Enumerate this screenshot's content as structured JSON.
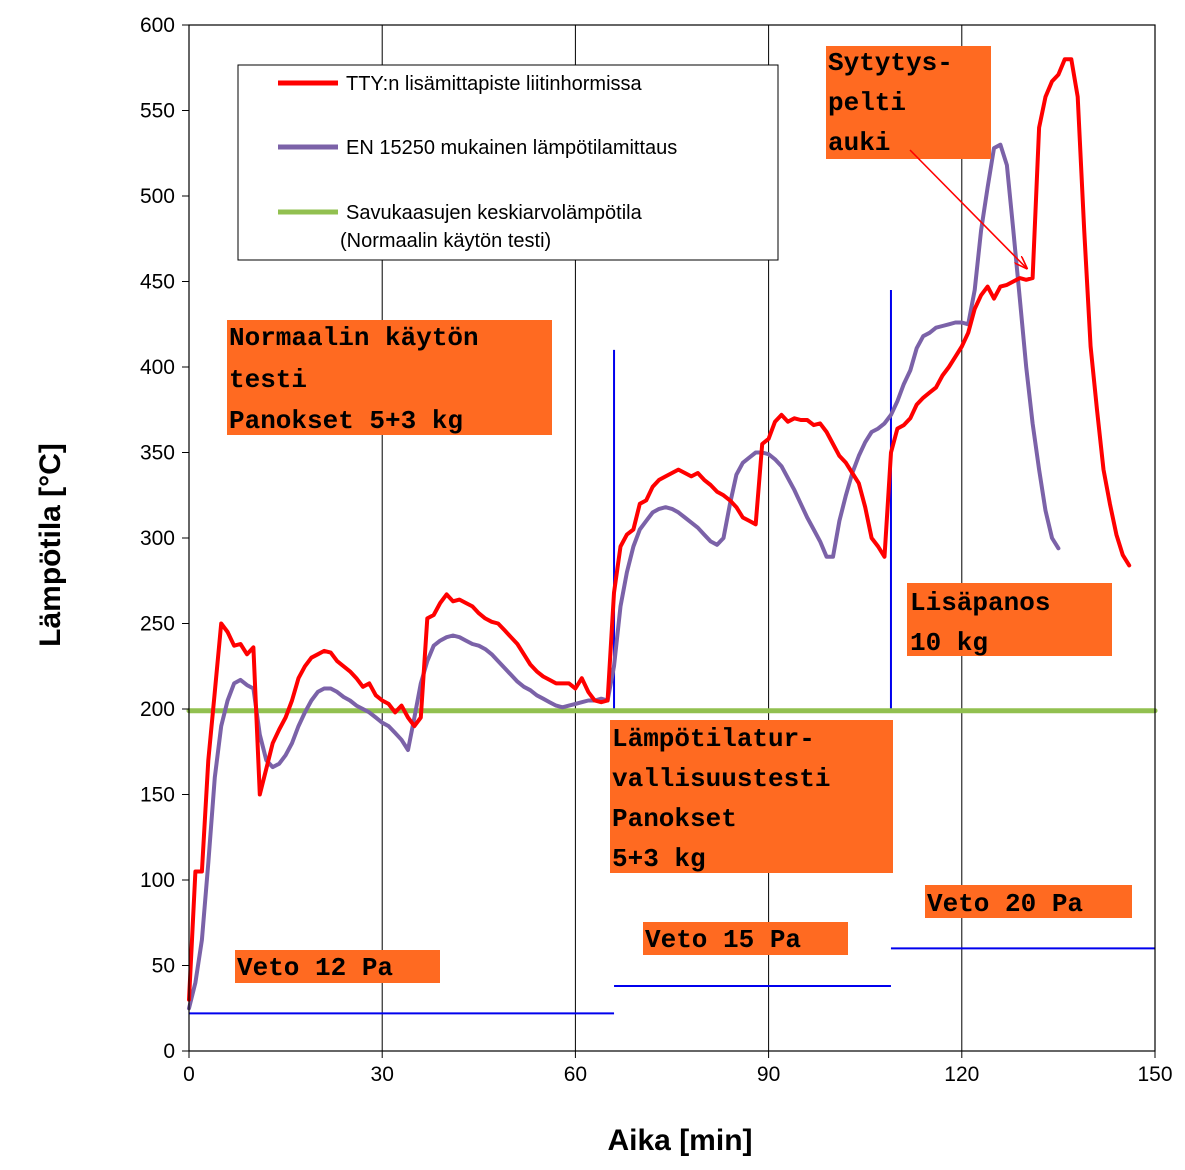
{
  "chart_data": {
    "type": "line",
    "xlabel": "Aika [min]",
    "ylabel": "Lämpötila [°C]",
    "xlim": [
      0,
      150
    ],
    "ylim": [
      0,
      600
    ],
    "xticks": [
      0,
      30,
      60,
      90,
      120,
      150
    ],
    "yticks": [
      0,
      50,
      100,
      150,
      200,
      250,
      300,
      350,
      400,
      450,
      500,
      550,
      600
    ],
    "grid": "vertical",
    "legend_position": "top-left",
    "legend": [
      {
        "label": "TTY:n lisämittapiste liitinhormissa",
        "color": "#ff0000"
      },
      {
        "label": "EN 15250 mukainen lämpötilamittaus",
        "color": "#7b62a8"
      },
      {
        "label": "Savukaasujen keskiarvolämpötila",
        "label2": "(Normaalin käytön testi)",
        "color": "#92c050"
      }
    ],
    "series": [
      {
        "name": "TTY:n lisämittapiste liitinhormissa",
        "color": "#ff0000",
        "points": [
          [
            0,
            30
          ],
          [
            1,
            105
          ],
          [
            2,
            105
          ],
          [
            3,
            170
          ],
          [
            4,
            210
          ],
          [
            5,
            250
          ],
          [
            6,
            245
          ],
          [
            7,
            237
          ],
          [
            8,
            238
          ],
          [
            9,
            232
          ],
          [
            10,
            236
          ],
          [
            11,
            150
          ],
          [
            12,
            165
          ],
          [
            13,
            180
          ],
          [
            14,
            188
          ],
          [
            15,
            195
          ],
          [
            16,
            205
          ],
          [
            17,
            218
          ],
          [
            18,
            225
          ],
          [
            19,
            230
          ],
          [
            20,
            232
          ],
          [
            21,
            234
          ],
          [
            22,
            233
          ],
          [
            23,
            228
          ],
          [
            24,
            225
          ],
          [
            25,
            222
          ],
          [
            26,
            218
          ],
          [
            27,
            213
          ],
          [
            28,
            215
          ],
          [
            29,
            208
          ],
          [
            30,
            205
          ],
          [
            31,
            203
          ],
          [
            32,
            198
          ],
          [
            33,
            202
          ],
          [
            34,
            195
          ],
          [
            35,
            190
          ],
          [
            36,
            195
          ],
          [
            37,
            253
          ],
          [
            38,
            255
          ],
          [
            39,
            262
          ],
          [
            40,
            267
          ],
          [
            41,
            263
          ],
          [
            42,
            264
          ],
          [
            43,
            262
          ],
          [
            44,
            260
          ],
          [
            45,
            256
          ],
          [
            46,
            253
          ],
          [
            47,
            251
          ],
          [
            48,
            250
          ],
          [
            49,
            246
          ],
          [
            50,
            242
          ],
          [
            51,
            238
          ],
          [
            52,
            232
          ],
          [
            53,
            226
          ],
          [
            54,
            222
          ],
          [
            55,
            219
          ],
          [
            56,
            217
          ],
          [
            57,
            215
          ],
          [
            58,
            215
          ],
          [
            59,
            215
          ],
          [
            60,
            212
          ],
          [
            61,
            218
          ],
          [
            62,
            210
          ],
          [
            63,
            205
          ],
          [
            64,
            204
          ],
          [
            65,
            205
          ],
          [
            66,
            268
          ],
          [
            67,
            295
          ],
          [
            68,
            302
          ],
          [
            69,
            305
          ],
          [
            70,
            320
          ],
          [
            71,
            322
          ],
          [
            72,
            330
          ],
          [
            73,
            334
          ],
          [
            74,
            336
          ],
          [
            75,
            338
          ],
          [
            76,
            340
          ],
          [
            77,
            338
          ],
          [
            78,
            336
          ],
          [
            79,
            338
          ],
          [
            80,
            334
          ],
          [
            81,
            331
          ],
          [
            82,
            327
          ],
          [
            83,
            325
          ],
          [
            84,
            322
          ],
          [
            85,
            318
          ],
          [
            86,
            312
          ],
          [
            87,
            310
          ],
          [
            88,
            308
          ],
          [
            89,
            355
          ],
          [
            90,
            358
          ],
          [
            91,
            368
          ],
          [
            92,
            372
          ],
          [
            93,
            368
          ],
          [
            94,
            370
          ],
          [
            95,
            369
          ],
          [
            96,
            369
          ],
          [
            97,
            366
          ],
          [
            98,
            367
          ],
          [
            99,
            362
          ],
          [
            100,
            355
          ],
          [
            101,
            348
          ],
          [
            102,
            344
          ],
          [
            103,
            338
          ],
          [
            104,
            332
          ],
          [
            105,
            318
          ],
          [
            106,
            300
          ],
          [
            107,
            295
          ],
          [
            108,
            289
          ],
          [
            109,
            350
          ],
          [
            110,
            364
          ],
          [
            111,
            366
          ],
          [
            112,
            370
          ],
          [
            113,
            378
          ],
          [
            114,
            382
          ],
          [
            115,
            385
          ],
          [
            116,
            388
          ],
          [
            117,
            395
          ],
          [
            118,
            400
          ],
          [
            119,
            406
          ],
          [
            120,
            412
          ],
          [
            121,
            420
          ],
          [
            122,
            434
          ],
          [
            123,
            442
          ],
          [
            124,
            447
          ],
          [
            125,
            440
          ],
          [
            126,
            447
          ],
          [
            127,
            448
          ],
          [
            128,
            450
          ],
          [
            129,
            452
          ],
          [
            130,
            451
          ],
          [
            131,
            452
          ],
          [
            132,
            540
          ],
          [
            133,
            558
          ],
          [
            134,
            567
          ],
          [
            135,
            571
          ],
          [
            136,
            580
          ],
          [
            137,
            580
          ],
          [
            138,
            558
          ],
          [
            139,
            480
          ],
          [
            140,
            412
          ],
          [
            141,
            375
          ],
          [
            142,
            340
          ],
          [
            143,
            320
          ],
          [
            144,
            302
          ],
          [
            145,
            290
          ],
          [
            146,
            284
          ]
        ]
      },
      {
        "name": "EN 15250 mukainen lämpötilamittaus",
        "color": "#7b62a8",
        "points": [
          [
            0,
            25
          ],
          [
            1,
            40
          ],
          [
            2,
            65
          ],
          [
            3,
            110
          ],
          [
            4,
            160
          ],
          [
            5,
            190
          ],
          [
            6,
            205
          ],
          [
            7,
            215
          ],
          [
            8,
            217
          ],
          [
            9,
            214
          ],
          [
            10,
            212
          ],
          [
            11,
            185
          ],
          [
            12,
            170
          ],
          [
            13,
            166
          ],
          [
            14,
            168
          ],
          [
            15,
            173
          ],
          [
            16,
            180
          ],
          [
            17,
            190
          ],
          [
            18,
            198
          ],
          [
            19,
            205
          ],
          [
            20,
            210
          ],
          [
            21,
            212
          ],
          [
            22,
            212
          ],
          [
            23,
            210
          ],
          [
            24,
            207
          ],
          [
            25,
            205
          ],
          [
            26,
            202
          ],
          [
            27,
            200
          ],
          [
            28,
            198
          ],
          [
            29,
            195
          ],
          [
            30,
            192
          ],
          [
            31,
            190
          ],
          [
            32,
            186
          ],
          [
            33,
            182
          ],
          [
            34,
            176
          ],
          [
            35,
            195
          ],
          [
            36,
            215
          ],
          [
            37,
            228
          ],
          [
            38,
            237
          ],
          [
            39,
            240
          ],
          [
            40,
            242
          ],
          [
            41,
            243
          ],
          [
            42,
            242
          ],
          [
            43,
            240
          ],
          [
            44,
            238
          ],
          [
            45,
            237
          ],
          [
            46,
            235
          ],
          [
            47,
            232
          ],
          [
            48,
            228
          ],
          [
            49,
            224
          ],
          [
            50,
            220
          ],
          [
            51,
            216
          ],
          [
            52,
            213
          ],
          [
            53,
            211
          ],
          [
            54,
            208
          ],
          [
            55,
            206
          ],
          [
            56,
            204
          ],
          [
            57,
            202
          ],
          [
            58,
            201
          ],
          [
            59,
            202
          ],
          [
            60,
            203
          ],
          [
            61,
            204
          ],
          [
            62,
            205
          ],
          [
            63,
            205
          ],
          [
            64,
            206
          ],
          [
            65,
            205
          ],
          [
            66,
            225
          ],
          [
            67,
            260
          ],
          [
            68,
            280
          ],
          [
            69,
            295
          ],
          [
            70,
            305
          ],
          [
            71,
            310
          ],
          [
            72,
            315
          ],
          [
            73,
            317
          ],
          [
            74,
            318
          ],
          [
            75,
            317
          ],
          [
            76,
            315
          ],
          [
            77,
            312
          ],
          [
            78,
            309
          ],
          [
            79,
            306
          ],
          [
            80,
            302
          ],
          [
            81,
            298
          ],
          [
            82,
            296
          ],
          [
            83,
            300
          ],
          [
            84,
            320
          ],
          [
            85,
            337
          ],
          [
            86,
            344
          ],
          [
            87,
            347
          ],
          [
            88,
            350
          ],
          [
            89,
            350
          ],
          [
            90,
            349
          ],
          [
            91,
            346
          ],
          [
            92,
            342
          ],
          [
            93,
            335
          ],
          [
            94,
            328
          ],
          [
            95,
            320
          ],
          [
            96,
            312
          ],
          [
            97,
            305
          ],
          [
            98,
            298
          ],
          [
            99,
            289
          ],
          [
            100,
            289
          ],
          [
            101,
            310
          ],
          [
            102,
            325
          ],
          [
            103,
            338
          ],
          [
            104,
            348
          ],
          [
            105,
            356
          ],
          [
            106,
            362
          ],
          [
            107,
            364
          ],
          [
            108,
            367
          ],
          [
            109,
            372
          ],
          [
            110,
            380
          ],
          [
            111,
            390
          ],
          [
            112,
            398
          ],
          [
            113,
            411
          ],
          [
            114,
            418
          ],
          [
            115,
            420
          ],
          [
            116,
            423
          ],
          [
            117,
            424
          ],
          [
            118,
            425
          ],
          [
            119,
            426
          ],
          [
            120,
            426
          ],
          [
            121,
            425
          ],
          [
            122,
            445
          ],
          [
            123,
            480
          ],
          [
            124,
            505
          ],
          [
            125,
            528
          ],
          [
            126,
            530
          ],
          [
            127,
            518
          ],
          [
            128,
            480
          ],
          [
            129,
            440
          ],
          [
            130,
            400
          ],
          [
            131,
            367
          ],
          [
            132,
            340
          ],
          [
            133,
            316
          ],
          [
            134,
            300
          ],
          [
            135,
            294
          ]
        ]
      },
      {
        "name": "Savukaasujen keskiarvolämpötila",
        "color": "#92c050",
        "points": [
          [
            0,
            199
          ],
          [
            150,
            199
          ]
        ]
      }
    ],
    "annotations": [
      {
        "lines": [
          "Normaalin käytön",
          "testi",
          "Panokset 5+3 kg"
        ]
      },
      {
        "lines": [
          "Sytytys-",
          "pelti",
          "auki"
        ]
      },
      {
        "lines": [
          "Lisäpanos",
          "10 kg"
        ]
      },
      {
        "lines": [
          "Lämpötilatur-",
          "vallisuustesti",
          "Panokset",
          "5+3 kg"
        ]
      },
      {
        "lines": [
          "Veto 12 Pa"
        ]
      },
      {
        "lines": [
          "Veto 15 Pa"
        ]
      },
      {
        "lines": [
          "Veto 20 Pa"
        ]
      }
    ],
    "reference_lines": [
      {
        "orientation": "vertical",
        "x": 66,
        "y_range": [
          200,
          410
        ]
      },
      {
        "orientation": "vertical",
        "x": 109,
        "y_range": [
          200,
          445
        ]
      },
      {
        "orientation": "horizontal",
        "y": 22,
        "x_range": [
          0,
          66
        ]
      },
      {
        "orientation": "horizontal",
        "y": 38,
        "x_range": [
          66,
          109
        ]
      },
      {
        "orientation": "horizontal",
        "y": 60,
        "x_range": [
          109,
          150
        ]
      }
    ],
    "arrow": {
      "from_annotation": "Sytytys-pelti auki",
      "to": [
        130,
        458
      ]
    }
  }
}
